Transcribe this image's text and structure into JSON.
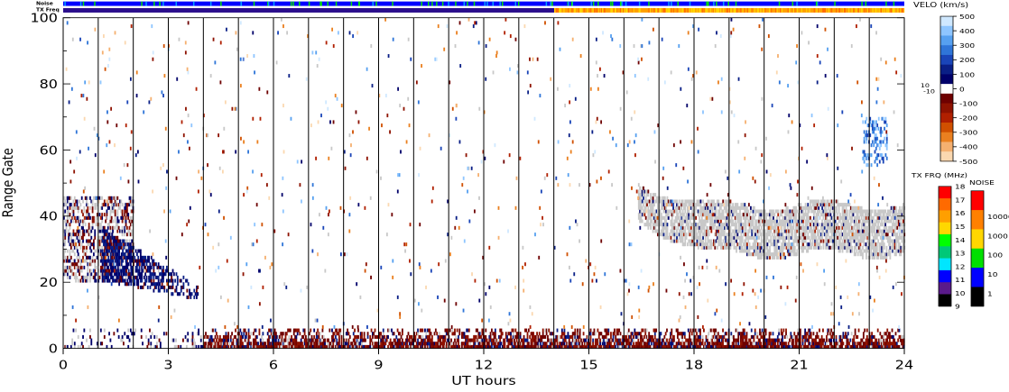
{
  "chart_data": {
    "type": "heatmap",
    "title": "",
    "xlabel": "UT hours",
    "ylabel": "Range Gate",
    "xlim": [
      0,
      24
    ],
    "ylim": [
      0,
      100
    ],
    "x_ticks": [
      0,
      3,
      6,
      9,
      12,
      15,
      18,
      21,
      24
    ],
    "y_ticks": [
      0,
      20,
      40,
      60,
      80,
      100
    ],
    "grid": "vertical lines at each hour",
    "status_bars": {
      "noise_label": "Noise",
      "txfreq_label": "TX Freq",
      "txfreq_change_hour": 14.0,
      "noise_color": "#0000ff",
      "txfreq_color_before": "#2a0d8c",
      "txfreq_color_after": "#ffa000"
    },
    "velocity_colorbar": {
      "title": "VELO (km/s)",
      "labels": [
        "500",
        "400",
        "300",
        "200",
        "100",
        "0",
        "-100",
        "-200",
        "-300",
        "-400",
        "-500"
      ],
      "side_labels": [
        "10",
        "-10"
      ],
      "positive_colors": [
        "#cfe8ff",
        "#8ec5ff",
        "#56a0f0",
        "#2f75d8",
        "#1a45b8",
        "#0a1f86",
        "#00006a"
      ],
      "negative_colors": [
        "#6e0000",
        "#8e1200",
        "#b02000",
        "#d05000",
        "#ea8020",
        "#f5b070",
        "#fbd8b0"
      ],
      "ground_color": "#c8c8c8"
    },
    "txfreq_colorbar": {
      "title": "TX FRQ (MHz)",
      "labels": [
        "18",
        "17",
        "16",
        "15",
        "14",
        "13",
        "12",
        "11",
        "10",
        "9"
      ],
      "colors": [
        "#ff0000",
        "#ff6a00",
        "#ff9f00",
        "#ffd700",
        "#00ff00",
        "#00c878",
        "#00e6ff",
        "#0000ff",
        "#5a1a8a",
        "#000000"
      ]
    },
    "noise_colorbar": {
      "title": "NOISE",
      "labels": [
        "10000",
        "1000",
        "100",
        "10",
        "1"
      ],
      "colors": [
        "#ff0000",
        "#ff8000",
        "#ffd700",
        "#00e000",
        "#0000ff",
        "#000000"
      ]
    },
    "scatter_regions": [
      {
        "name": "ground scatter band",
        "x": [
          16.4,
          24.0
        ],
        "y": [
          27,
          47
        ],
        "color": "ground"
      },
      {
        "name": "low-gate negative band",
        "x": [
          4.0,
          24.0
        ],
        "y": [
          0,
          6
        ],
        "color": "negative"
      },
      {
        "name": "near-range positive patch",
        "x": [
          1.1,
          3.9
        ],
        "y": [
          14,
          34
        ],
        "color": "positive"
      },
      {
        "name": "early mixed scatter",
        "x": [
          0.0,
          2.0
        ],
        "y": [
          20,
          45
        ],
        "color": "mixed"
      },
      {
        "name": "late positive patch",
        "x": [
          22.8,
          23.5
        ],
        "y": [
          55,
          70
        ],
        "color": "positive"
      }
    ]
  }
}
